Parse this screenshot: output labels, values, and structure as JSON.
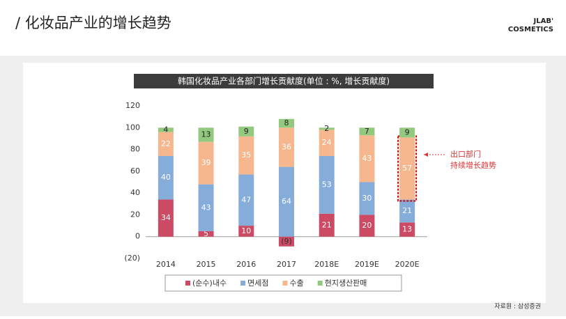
{
  "header": {
    "title": "/ 化妆品产业的增长趋势",
    "logo": [
      "JLAB'",
      "COSMETICS"
    ]
  },
  "chart_data": {
    "type": "stacked_bar",
    "title": "韩国化妆品产业各部门增长贡献度(单位 : %, 增长贡献度)",
    "categories": [
      "2014",
      "2015",
      "2016",
      "2017",
      "2018E",
      "2019E",
      "2020E"
    ],
    "series": [
      {
        "name": "(순수)내수",
        "color": "#cc4a63",
        "values": [
          34,
          5,
          10,
          -9,
          21,
          20,
          13
        ],
        "value_labels": [
          "34",
          "5",
          "10",
          "(9)",
          "21",
          "20",
          "13"
        ]
      },
      {
        "name": "면세점",
        "color": "#86acd9",
        "values": [
          40,
          43,
          47,
          64,
          53,
          30,
          21
        ]
      },
      {
        "name": "수출",
        "color": "#f6b78e",
        "values": [
          22,
          39,
          35,
          36,
          24,
          43,
          57
        ]
      },
      {
        "name": "현지생산판매",
        "color": "#92c97f",
        "values": [
          4,
          13,
          9,
          8,
          2,
          7,
          9
        ]
      }
    ],
    "ylim": [
      -20,
      120
    ],
    "yticks": [
      120,
      100,
      80,
      60,
      40,
      20,
      0,
      {
        "value": -20,
        "label": "(20)"
      }
    ],
    "grid": false,
    "highlight": {
      "series": 2,
      "index": 6
    },
    "annotation": [
      "出口部门",
      "持续增长趋势"
    ],
    "source": "자료원 : 삼성증권"
  }
}
